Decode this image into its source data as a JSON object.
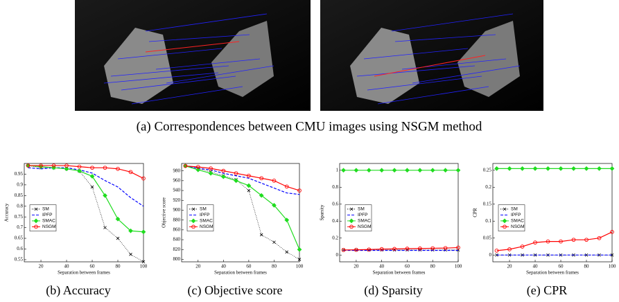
{
  "figure_caption": "(a) Correspondences between CMU images using NSGM method",
  "chart_data": [
    {
      "type": "line",
      "caption": "(b) Accuracy",
      "xlabel": "Separation between frames",
      "ylabel": "Accuracy",
      "legend": "center-left",
      "grid": false,
      "x": [
        10,
        20,
        30,
        40,
        50,
        60,
        70,
        80,
        90,
        100
      ],
      "xlim": [
        7,
        100
      ],
      "xticks": [
        20,
        40,
        60,
        80,
        100
      ],
      "ylim": [
        0.54,
        1.0
      ],
      "yticks": [
        0.55,
        0.6,
        0.65,
        0.7,
        0.75,
        0.8,
        0.85,
        0.9,
        0.95
      ],
      "series": [
        {
          "name": "SM",
          "color": "#000000",
          "dash": "dotted",
          "marker": "x",
          "values": [
            0.99,
            0.98,
            0.98,
            0.975,
            0.965,
            0.89,
            0.7,
            0.65,
            0.575,
            0.54
          ]
        },
        {
          "name": "IPFP",
          "color": "#0000ff",
          "dash": "dashed",
          "marker": "none",
          "values": [
            0.98,
            0.975,
            0.98,
            0.98,
            0.97,
            0.955,
            0.92,
            0.89,
            0.84,
            0.8
          ]
        },
        {
          "name": "SMAC",
          "color": "#1fdc1f",
          "dash": "solid",
          "marker": "diamond",
          "values": [
            0.99,
            0.985,
            0.98,
            0.975,
            0.965,
            0.94,
            0.85,
            0.74,
            0.685,
            0.68
          ]
        },
        {
          "name": "NSGM",
          "color": "#ff0000",
          "dash": "solid",
          "marker": "circle",
          "values": [
            0.99,
            0.99,
            0.99,
            0.99,
            0.985,
            0.98,
            0.98,
            0.975,
            0.96,
            0.93
          ]
        }
      ]
    },
    {
      "type": "line",
      "caption": "(c) Objective score",
      "xlabel": "Separation between frames",
      "ylabel": "Objective score",
      "legend": "center-left",
      "grid": false,
      "x": [
        10,
        20,
        30,
        40,
        50,
        60,
        70,
        80,
        90,
        100
      ],
      "xlim": [
        7,
        100
      ],
      "xticks": [
        20,
        40,
        60,
        80,
        100
      ],
      "ylim": [
        795,
        995
      ],
      "yticks": [
        800,
        820,
        840,
        860,
        880,
        900,
        920,
        940,
        960,
        980
      ],
      "series": [
        {
          "name": "SM",
          "color": "#000000",
          "dash": "dotted",
          "marker": "x",
          "values": [
            990,
            985,
            978,
            970,
            962,
            940,
            850,
            835,
            815,
            800
          ]
        },
        {
          "name": "IPFP",
          "color": "#0000ff",
          "dash": "dashed",
          "marker": "none",
          "values": [
            990,
            985,
            982,
            975,
            970,
            965,
            955,
            945,
            935,
            932
          ]
        },
        {
          "name": "SMAC",
          "color": "#1fdc1f",
          "dash": "solid",
          "marker": "diamond",
          "values": [
            990,
            982,
            975,
            968,
            960,
            950,
            930,
            910,
            880,
            820
          ]
        },
        {
          "name": "NSGM",
          "color": "#ff0000",
          "dash": "solid",
          "marker": "circle",
          "values": [
            990,
            988,
            985,
            980,
            975,
            970,
            965,
            960,
            948,
            940
          ]
        }
      ]
    },
    {
      "type": "line",
      "caption": "(d) Sparsity",
      "xlabel": "Separation between frames",
      "ylabel": "Sparsity",
      "legend": "center-left",
      "grid": false,
      "x": [
        10,
        20,
        30,
        40,
        50,
        60,
        70,
        80,
        90,
        100
      ],
      "xlim": [
        7,
        100
      ],
      "xticks": [
        20,
        40,
        60,
        80,
        100
      ],
      "ylim": [
        -0.08,
        1.08
      ],
      "yticks": [
        0,
        0.2,
        0.4,
        0.6,
        0.8,
        1
      ],
      "series": [
        {
          "name": "SM",
          "color": "#000000",
          "dash": "dotted",
          "marker": "x",
          "values": [
            0.06,
            0.06,
            0.06,
            0.06,
            0.06,
            0.06,
            0.06,
            0.06,
            0.06,
            0.06
          ]
        },
        {
          "name": "IPFP",
          "color": "#0000ff",
          "dash": "dashed",
          "marker": "none",
          "values": [
            0.055,
            0.055,
            0.055,
            0.055,
            0.055,
            0.055,
            0.055,
            0.055,
            0.055,
            0.055
          ]
        },
        {
          "name": "SMAC",
          "color": "#1fdc1f",
          "dash": "solid",
          "marker": "diamond",
          "values": [
            1,
            1,
            1,
            1,
            1,
            1,
            1,
            1,
            1,
            1
          ]
        },
        {
          "name": "NSGM",
          "color": "#ff0000",
          "dash": "solid",
          "marker": "circle",
          "values": [
            0.06,
            0.062,
            0.065,
            0.07,
            0.072,
            0.075,
            0.077,
            0.08,
            0.082,
            0.088
          ]
        }
      ]
    },
    {
      "type": "line",
      "caption": "(e) CPR",
      "xlabel": "Separation between frames",
      "ylabel": "CPR",
      "legend": "center-left",
      "grid": false,
      "x": [
        10,
        20,
        30,
        40,
        50,
        60,
        70,
        80,
        90,
        100
      ],
      "xlim": [
        7,
        100
      ],
      "xticks": [
        20,
        40,
        60,
        80,
        100
      ],
      "ylim": [
        -0.02,
        0.27
      ],
      "yticks": [
        0,
        0.05,
        0.1,
        0.15,
        0.2,
        0.25
      ],
      "series": [
        {
          "name": "SM",
          "color": "#000000",
          "dash": "dotted",
          "marker": "x",
          "values": [
            0,
            0,
            0,
            0,
            0,
            0,
            0,
            0,
            0,
            0
          ]
        },
        {
          "name": "IPFP",
          "color": "#0000ff",
          "dash": "dashed",
          "marker": "none",
          "values": [
            0,
            0,
            0,
            0,
            0,
            0,
            0,
            0,
            0,
            0
          ]
        },
        {
          "name": "SMAC",
          "color": "#1fdc1f",
          "dash": "solid",
          "marker": "diamond",
          "values": [
            0.255,
            0.255,
            0.255,
            0.255,
            0.255,
            0.255,
            0.255,
            0.255,
            0.255,
            0.255
          ]
        },
        {
          "name": "NSGM",
          "color": "#ff0000",
          "dash": "solid",
          "marker": "circle",
          "values": [
            0.013,
            0.017,
            0.025,
            0.037,
            0.04,
            0.04,
            0.045,
            0.045,
            0.05,
            0.068
          ]
        }
      ]
    }
  ]
}
